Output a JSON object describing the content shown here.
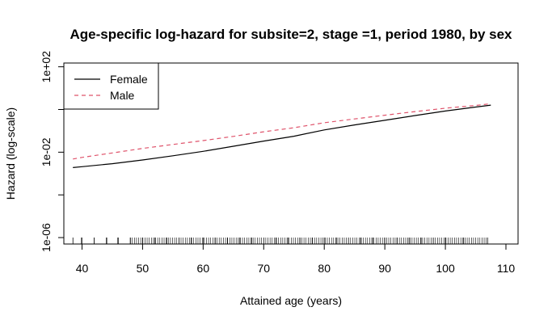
{
  "chart_data": {
    "type": "line",
    "title": "Age-specific log-hazard for subsite=2, stage =1, period 1980, by sex",
    "xlabel": "Attained age (years)",
    "ylabel": "Hazard (log-scale)",
    "xlim": [
      37,
      112
    ],
    "ylim": [
      5e-07,
      150
    ],
    "yscale": "log10",
    "x_ticks": [
      40,
      50,
      60,
      70,
      80,
      90,
      100,
      110
    ],
    "y_ticks": [
      {
        "value": 1e-06,
        "label": "1e-06"
      },
      {
        "value": 0.01,
        "label": "1e-02"
      },
      {
        "value": 100,
        "label": "1e+02"
      }
    ],
    "y_minor_ticks": [
      0.0001,
      1
    ],
    "grid": false,
    "legend": "top-left",
    "series": [
      {
        "name": "Female",
        "color": "#000000",
        "style": "solid",
        "x": [
          38.5,
          40,
          45,
          50,
          55,
          60,
          65,
          70,
          75,
          80,
          85,
          90,
          95,
          100,
          105,
          107.5
        ],
        "y": [
          0.0019,
          0.0021,
          0.0029,
          0.0043,
          0.0068,
          0.011,
          0.019,
          0.033,
          0.056,
          0.11,
          0.19,
          0.31,
          0.52,
          0.85,
          1.3,
          1.6
        ]
      },
      {
        "name": "Male",
        "color": "#df536b",
        "style": "dashed",
        "x": [
          38.5,
          40,
          45,
          50,
          55,
          60,
          65,
          70,
          75,
          80,
          85,
          90,
          95,
          100,
          105,
          107.5
        ],
        "y": [
          0.0048,
          0.0057,
          0.0092,
          0.015,
          0.023,
          0.035,
          0.055,
          0.09,
          0.14,
          0.24,
          0.36,
          0.54,
          0.8,
          1.15,
          1.55,
          1.85
        ]
      }
    ],
    "rug_ages": [
      38.5,
      40,
      42,
      44,
      46,
      48,
      50,
      52,
      54,
      56,
      58,
      60,
      62,
      64,
      66,
      68,
      70,
      72,
      74,
      76,
      78,
      80,
      82,
      84,
      86,
      88,
      90,
      92,
      94,
      96,
      98,
      100,
      103,
      107
    ]
  }
}
